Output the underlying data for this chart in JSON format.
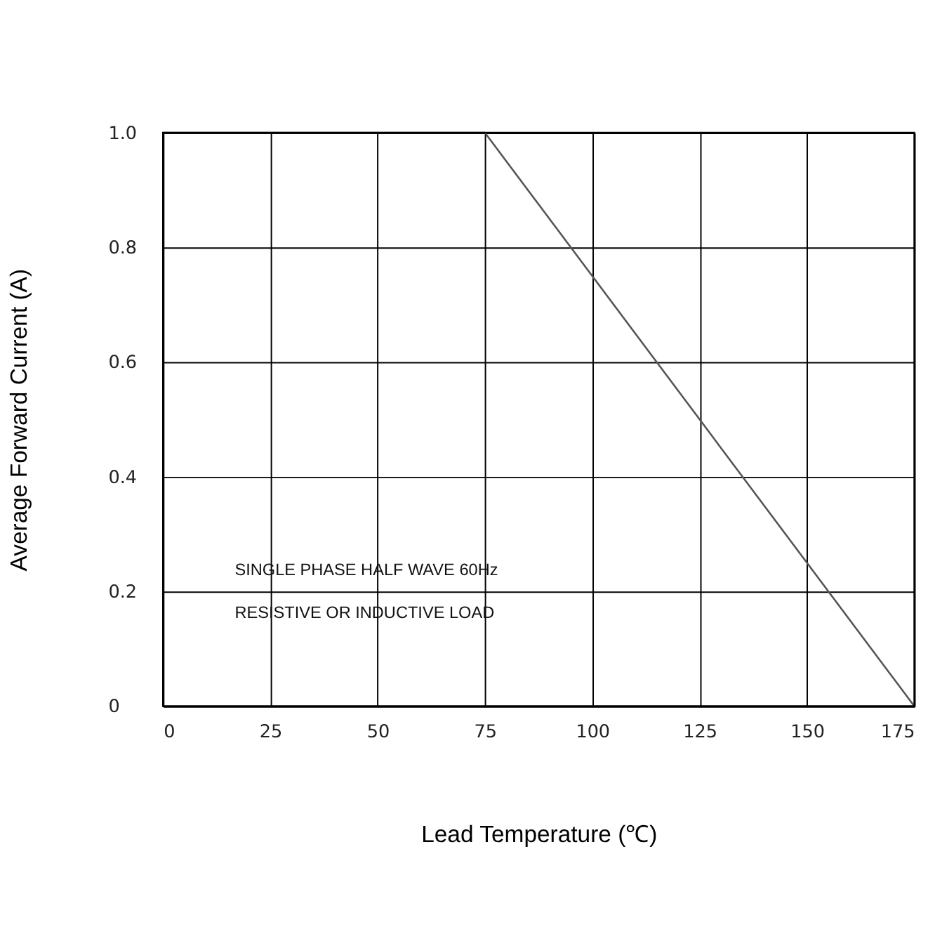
{
  "chart_data": {
    "type": "line",
    "xlabel": "Lead Temperature (℃)",
    "ylabel": "Average Forward Current (A)",
    "x": [
      0,
      75,
      175
    ],
    "series": [
      {
        "color": "#555555",
        "values": [
          1,
          1,
          0
        ]
      }
    ],
    "xlim": [
      0,
      175
    ],
    "xticks": [
      0,
      25,
      50,
      75,
      100,
      125,
      150,
      175
    ],
    "ylim": [
      0,
      1
    ],
    "yticks": [
      0,
      0.2,
      0.4,
      0.6,
      0.8,
      {
        "value": 1,
        "label": "1.0"
      }
    ],
    "grid": true,
    "marker": "none",
    "line_style": "solid",
    "annotations": [
      "SINGLE PHASE HALF WAVE 60Hz",
      "RESISTIVE OR INDUCTIVE LOAD"
    ]
  }
}
